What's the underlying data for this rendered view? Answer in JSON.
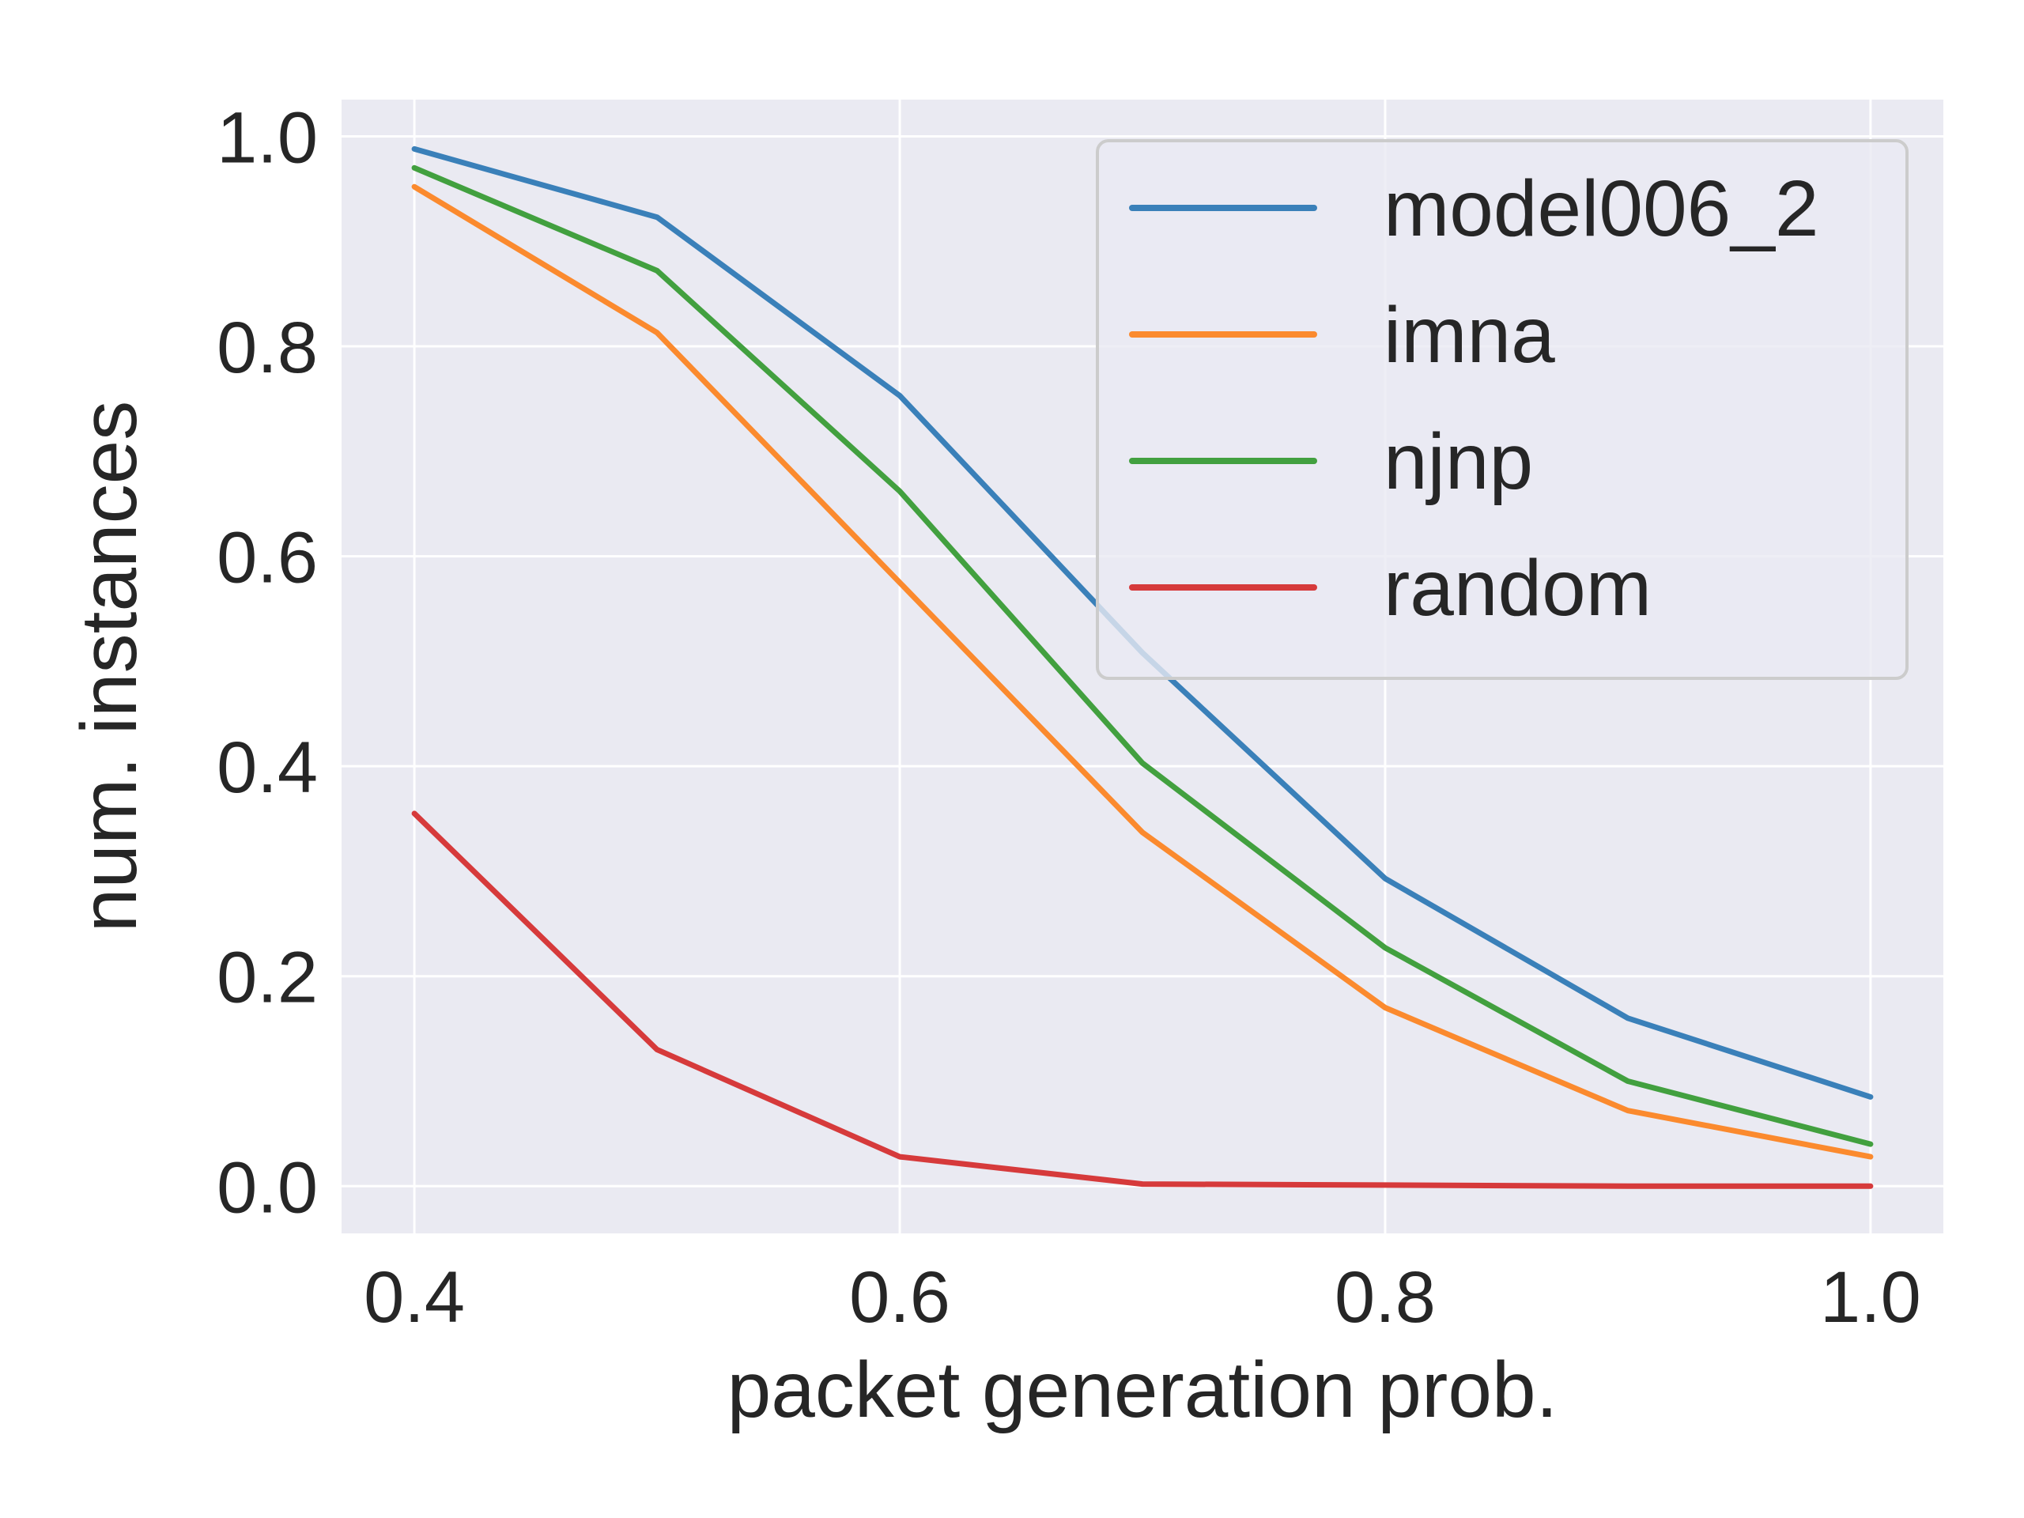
{
  "chart_data": {
    "type": "line",
    "title": "",
    "xlabel": "packet generation prob.",
    "ylabel": "num. instances",
    "xlim": [
      0.37,
      1.03
    ],
    "ylim": [
      -0.045,
      1.035
    ],
    "xticks": [
      0.4,
      0.6,
      0.8,
      1.0
    ],
    "xtick_labels": [
      "0.4",
      "0.6",
      "0.8",
      "1.0"
    ],
    "yticks": [
      0.0,
      0.2,
      0.4,
      0.6,
      0.8,
      1.0
    ],
    "ytick_labels": [
      "0.0",
      "0.2",
      "0.4",
      "0.6",
      "0.8",
      "1.0"
    ],
    "grid": true,
    "legend_position": "top-right",
    "x": [
      0.4,
      0.5,
      0.6,
      0.7,
      0.8,
      0.9,
      1.0
    ],
    "series": [
      {
        "name": "model006_2",
        "color": "#3a80b9",
        "values": [
          0.988,
          0.923,
          0.753,
          0.508,
          0.293,
          0.16,
          0.085
        ]
      },
      {
        "name": "imna",
        "color": "#fb8a2e",
        "values": [
          0.952,
          0.813,
          0.575,
          0.337,
          0.17,
          0.072,
          0.028
        ]
      },
      {
        "name": "njnp",
        "color": "#42a03f",
        "values": [
          0.97,
          0.872,
          0.662,
          0.403,
          0.227,
          0.1,
          0.04
        ]
      },
      {
        "name": "random",
        "color": "#d63a3b",
        "values": [
          0.355,
          0.13,
          0.028,
          0.002,
          0.001,
          0.0,
          0.0
        ]
      }
    ]
  }
}
